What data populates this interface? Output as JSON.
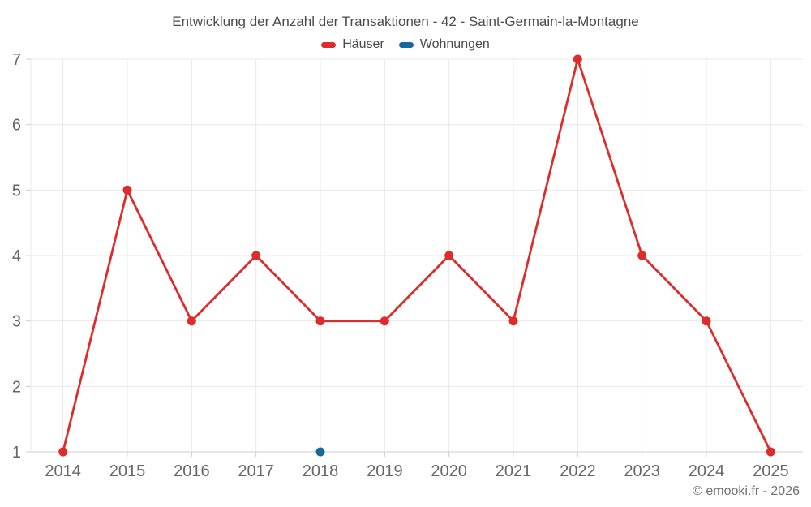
{
  "header": {
    "title": "Entwicklung der Anzahl der Transaktionen - 42 - Saint-Germain-la-Montagne"
  },
  "footer": {
    "credit": "© emooki.fr - 2026"
  },
  "chart_data": {
    "type": "line",
    "title": "Entwicklung der Anzahl der Transaktionen - 42 - Saint-Germain-la-Montagne",
    "categories": [
      "2014",
      "2015",
      "2016",
      "2017",
      "2018",
      "2019",
      "2020",
      "2021",
      "2022",
      "2023",
      "2024",
      "2025"
    ],
    "series": [
      {
        "name": "Häuser",
        "color": "#dd2c2c",
        "marker": "circle",
        "values": [
          1,
          5,
          3,
          4,
          3,
          3,
          4,
          3,
          7,
          4,
          3,
          1
        ]
      },
      {
        "name": "Wohnungen",
        "color": "#17699b",
        "marker": "circle",
        "values": [
          null,
          null,
          null,
          null,
          1,
          null,
          null,
          null,
          null,
          null,
          null,
          null
        ]
      }
    ],
    "ylabel": "",
    "xlabel": "",
    "ylim": [
      1,
      7
    ],
    "y_ticks": [
      1,
      2,
      3,
      4,
      5,
      6,
      7
    ],
    "grid": true,
    "legend_position": "top",
    "colors": {
      "gridline": "#e8e8e8",
      "axis_line": "#cccccc",
      "tick": "#cccccc",
      "axis_label": "#666666"
    }
  }
}
